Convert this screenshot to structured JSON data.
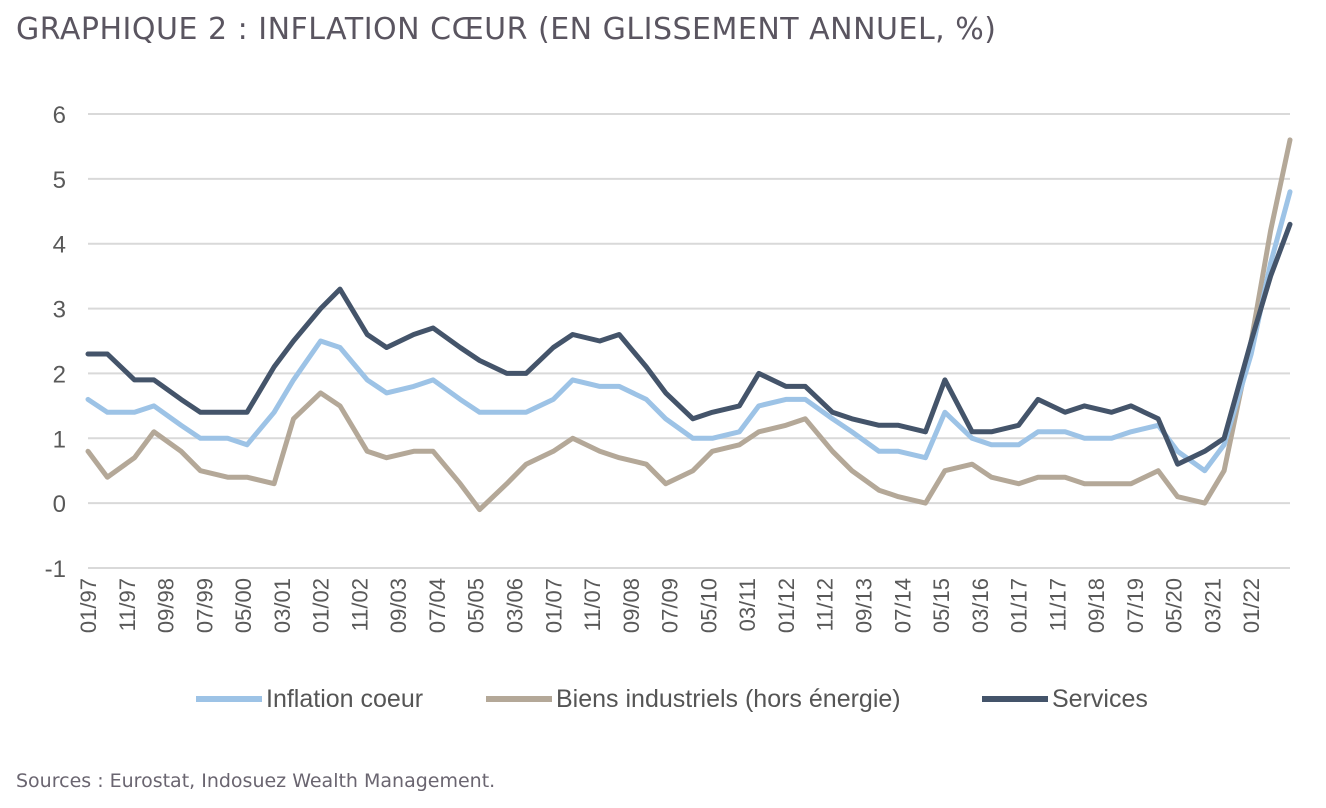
{
  "title": "GRAPHIQUE 2 : INFLATION CŒUR (EN GLISSEMENT ANNUEL, %)",
  "source": "Sources :  Eurostat, Indosuez Wealth Management.",
  "chart_data": {
    "type": "line",
    "title": "GRAPHIQUE 2 : INFLATION CŒUR (EN GLISSEMENT ANNUEL, %)",
    "xlabel": "",
    "ylabel": "",
    "ylim": [
      -1,
      6
    ],
    "yticks": [
      "6",
      "5",
      "4",
      "3",
      "2",
      "1",
      "0",
      "-1"
    ],
    "grid": "horizontal",
    "legend_position": "bottom",
    "x_range": [
      "01/97",
      "11/22"
    ],
    "xtick_labels": [
      "01/97",
      "11/97",
      "09/98",
      "07/99",
      "05/00",
      "03/01",
      "01/02",
      "11/02",
      "09/03",
      "07/04",
      "05/05",
      "03/06",
      "01/07",
      "11/07",
      "09/08",
      "07/09",
      "05/10",
      "03/11",
      "01/12",
      "11/12",
      "09/13",
      "07/14",
      "05/15",
      "03/16",
      "01/17",
      "11/17",
      "09/18",
      "07/19",
      "05/20",
      "03/21",
      "01/22"
    ],
    "series": [
      {
        "name": "Inflation coeur",
        "color": "#9dc3e6",
        "points": [
          [
            "01/97",
            1.6
          ],
          [
            "06/97",
            1.4
          ],
          [
            "01/98",
            1.4
          ],
          [
            "06/98",
            1.5
          ],
          [
            "01/99",
            1.2
          ],
          [
            "06/99",
            1.0
          ],
          [
            "01/00",
            1.0
          ],
          [
            "06/00",
            0.9
          ],
          [
            "01/01",
            1.4
          ],
          [
            "06/01",
            1.9
          ],
          [
            "01/02",
            2.5
          ],
          [
            "06/02",
            2.4
          ],
          [
            "01/03",
            1.9
          ],
          [
            "06/03",
            1.7
          ],
          [
            "01/04",
            1.8
          ],
          [
            "06/04",
            1.9
          ],
          [
            "01/05",
            1.6
          ],
          [
            "06/05",
            1.4
          ],
          [
            "01/06",
            1.4
          ],
          [
            "06/06",
            1.4
          ],
          [
            "01/07",
            1.6
          ],
          [
            "06/07",
            1.9
          ],
          [
            "01/08",
            1.8
          ],
          [
            "06/08",
            1.8
          ],
          [
            "01/09",
            1.6
          ],
          [
            "06/09",
            1.3
          ],
          [
            "01/10",
            1.0
          ],
          [
            "06/10",
            1.0
          ],
          [
            "01/11",
            1.1
          ],
          [
            "06/11",
            1.5
          ],
          [
            "01/12",
            1.6
          ],
          [
            "06/12",
            1.6
          ],
          [
            "01/13",
            1.3
          ],
          [
            "06/13",
            1.1
          ],
          [
            "01/14",
            0.8
          ],
          [
            "06/14",
            0.8
          ],
          [
            "01/15",
            0.7
          ],
          [
            "06/15",
            1.4
          ],
          [
            "01/16",
            1.0
          ],
          [
            "06/16",
            0.9
          ],
          [
            "01/17",
            0.9
          ],
          [
            "06/17",
            1.1
          ],
          [
            "01/18",
            1.1
          ],
          [
            "06/18",
            1.0
          ],
          [
            "01/19",
            1.0
          ],
          [
            "06/19",
            1.1
          ],
          [
            "01/20",
            1.2
          ],
          [
            "06/20",
            0.8
          ],
          [
            "01/21",
            0.5
          ],
          [
            "06/21",
            0.9
          ],
          [
            "01/22",
            2.3
          ],
          [
            "06/22",
            3.7
          ],
          [
            "11/22",
            4.8
          ]
        ]
      },
      {
        "name": "Biens industriels (hors énergie)",
        "color": "#b4a898",
        "points": [
          [
            "01/97",
            0.8
          ],
          [
            "06/97",
            0.4
          ],
          [
            "01/98",
            0.7
          ],
          [
            "06/98",
            1.1
          ],
          [
            "01/99",
            0.8
          ],
          [
            "06/99",
            0.5
          ],
          [
            "01/00",
            0.4
          ],
          [
            "06/00",
            0.4
          ],
          [
            "01/01",
            0.3
          ],
          [
            "06/01",
            1.3
          ],
          [
            "01/02",
            1.7
          ],
          [
            "06/02",
            1.5
          ],
          [
            "01/03",
            0.8
          ],
          [
            "06/03",
            0.7
          ],
          [
            "01/04",
            0.8
          ],
          [
            "06/04",
            0.8
          ],
          [
            "01/05",
            0.3
          ],
          [
            "06/05",
            -0.1
          ],
          [
            "01/06",
            0.3
          ],
          [
            "06/06",
            0.6
          ],
          [
            "01/07",
            0.8
          ],
          [
            "06/07",
            1.0
          ],
          [
            "01/08",
            0.8
          ],
          [
            "06/08",
            0.7
          ],
          [
            "01/09",
            0.6
          ],
          [
            "06/09",
            0.3
          ],
          [
            "01/10",
            0.5
          ],
          [
            "06/10",
            0.8
          ],
          [
            "01/11",
            0.9
          ],
          [
            "06/11",
            1.1
          ],
          [
            "01/12",
            1.2
          ],
          [
            "06/12",
            1.3
          ],
          [
            "01/13",
            0.8
          ],
          [
            "06/13",
            0.5
          ],
          [
            "01/14",
            0.2
          ],
          [
            "06/14",
            0.1
          ],
          [
            "01/15",
            0.0
          ],
          [
            "06/15",
            0.5
          ],
          [
            "01/16",
            0.6
          ],
          [
            "06/16",
            0.4
          ],
          [
            "01/17",
            0.3
          ],
          [
            "06/17",
            0.4
          ],
          [
            "01/18",
            0.4
          ],
          [
            "06/18",
            0.3
          ],
          [
            "01/19",
            0.3
          ],
          [
            "06/19",
            0.3
          ],
          [
            "01/20",
            0.5
          ],
          [
            "06/20",
            0.1
          ],
          [
            "01/21",
            0.0
          ],
          [
            "06/21",
            0.5
          ],
          [
            "01/22",
            2.5
          ],
          [
            "06/22",
            4.2
          ],
          [
            "11/22",
            5.6
          ]
        ]
      },
      {
        "name": "Services",
        "color": "#44546a",
        "points": [
          [
            "01/97",
            2.3
          ],
          [
            "06/97",
            2.3
          ],
          [
            "01/98",
            1.9
          ],
          [
            "06/98",
            1.9
          ],
          [
            "01/99",
            1.6
          ],
          [
            "06/99",
            1.4
          ],
          [
            "01/00",
            1.4
          ],
          [
            "06/00",
            1.4
          ],
          [
            "01/01",
            2.1
          ],
          [
            "06/01",
            2.5
          ],
          [
            "01/02",
            3.0
          ],
          [
            "06/02",
            3.3
          ],
          [
            "01/03",
            2.6
          ],
          [
            "06/03",
            2.4
          ],
          [
            "01/04",
            2.6
          ],
          [
            "06/04",
            2.7
          ],
          [
            "01/05",
            2.4
          ],
          [
            "06/05",
            2.2
          ],
          [
            "01/06",
            2.0
          ],
          [
            "06/06",
            2.0
          ],
          [
            "01/07",
            2.4
          ],
          [
            "06/07",
            2.6
          ],
          [
            "01/08",
            2.5
          ],
          [
            "06/08",
            2.6
          ],
          [
            "01/09",
            2.1
          ],
          [
            "06/09",
            1.7
          ],
          [
            "01/10",
            1.3
          ],
          [
            "06/10",
            1.4
          ],
          [
            "01/11",
            1.5
          ],
          [
            "06/11",
            2.0
          ],
          [
            "01/12",
            1.8
          ],
          [
            "06/12",
            1.8
          ],
          [
            "01/13",
            1.4
          ],
          [
            "06/13",
            1.3
          ],
          [
            "01/14",
            1.2
          ],
          [
            "06/14",
            1.2
          ],
          [
            "01/15",
            1.1
          ],
          [
            "06/15",
            1.9
          ],
          [
            "01/16",
            1.1
          ],
          [
            "06/16",
            1.1
          ],
          [
            "01/17",
            1.2
          ],
          [
            "06/17",
            1.6
          ],
          [
            "01/18",
            1.4
          ],
          [
            "06/18",
            1.5
          ],
          [
            "01/19",
            1.4
          ],
          [
            "06/19",
            1.5
          ],
          [
            "01/20",
            1.3
          ],
          [
            "06/20",
            0.6
          ],
          [
            "01/21",
            0.8
          ],
          [
            "06/21",
            1.0
          ],
          [
            "01/22",
            2.5
          ],
          [
            "06/22",
            3.5
          ],
          [
            "11/22",
            4.3
          ]
        ]
      }
    ]
  }
}
